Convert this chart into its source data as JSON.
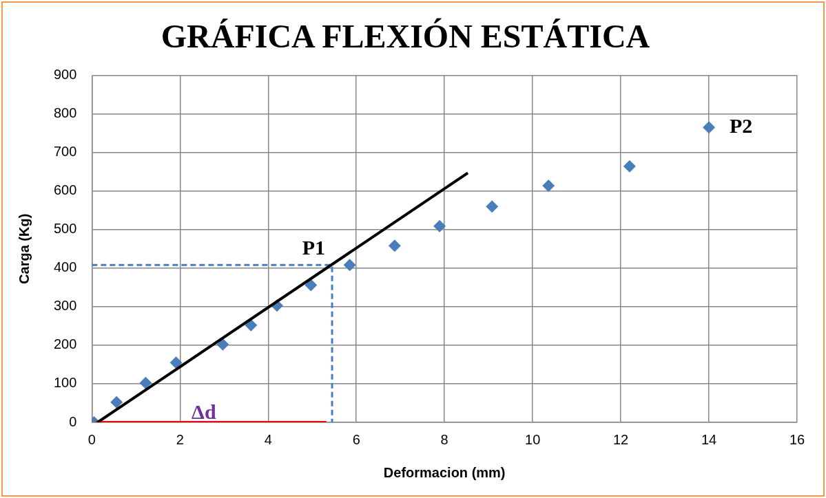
{
  "chart_data": {
    "type": "scatter",
    "title": "GRÁFICA FLEXIÓN ESTÁTICA",
    "xlabel": "Deformacion (mm)",
    "ylabel": "Carga (Kg)",
    "xlim": [
      0,
      16
    ],
    "xticks": [
      0,
      2,
      4,
      6,
      8,
      10,
      12,
      14,
      16
    ],
    "ylim": [
      0,
      900
    ],
    "yticks": [
      0,
      100,
      200,
      300,
      400,
      500,
      600,
      700,
      800,
      900
    ],
    "grid": true,
    "series": [
      {
        "type": "line",
        "color": "#000000",
        "marker": "none",
        "line_style": "solid",
        "x": [
          0.13,
          8.53
        ],
        "values": [
          0,
          647
        ]
      },
      {
        "type": "line",
        "color": "#4a7ebb",
        "marker": "none",
        "line_style": "dashed",
        "x": [
          0,
          5.45,
          5.45
        ],
        "values": [
          408,
          408,
          0
        ]
      },
      {
        "type": "line",
        "color": "#ff0000",
        "marker": "none",
        "line_style": "solid",
        "x": [
          0.08,
          5.32
        ],
        "values": [
          0,
          0
        ]
      },
      {
        "type": "scatter",
        "color": "#4a7ebb",
        "marker": "diamond",
        "x": [
          0.05,
          0.56,
          1.22,
          1.91,
          2.97,
          3.61,
          4.2,
          4.97,
          5.85,
          6.87,
          7.89,
          9.08,
          10.36,
          12.2,
          14.0
        ],
        "values": [
          0,
          52,
          102,
          155,
          202,
          252,
          303,
          356,
          408,
          458,
          509,
          560,
          614,
          664,
          765
        ]
      }
    ],
    "annotations": [
      {
        "text": "P1",
        "x": 5.45,
        "y": 408
      },
      {
        "text": "P2",
        "x": 14.0,
        "y": 765
      },
      {
        "text": "Δd",
        "x": 2.54,
        "y": 0
      }
    ]
  }
}
